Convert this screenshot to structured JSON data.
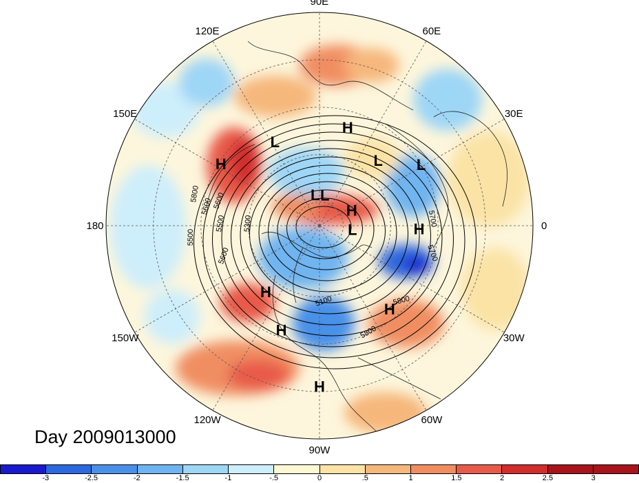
{
  "day_label": "Day 2009013000",
  "longitude_labels": [
    "90E",
    "60E",
    "30E",
    "0",
    "30W",
    "60W",
    "90W",
    "120W",
    "150W",
    "180",
    "150E",
    "120E"
  ],
  "pressure_systems": [
    {
      "type": "L",
      "lon": 118,
      "lat": 50
    },
    {
      "type": "H",
      "lon": 74,
      "lat": 47
    },
    {
      "type": "L",
      "lon": 48,
      "lat": 53
    },
    {
      "type": "L",
      "lon": 31,
      "lat": 40
    },
    {
      "type": "H",
      "lon": 358,
      "lat": 48
    },
    {
      "type": "H",
      "lon": 250,
      "lat": 43
    },
    {
      "type": "L",
      "lon": 98,
      "lat": 77
    },
    {
      "type": "L",
      "lon": 80,
      "lat": 77
    },
    {
      "type": "H",
      "lon": 25,
      "lat": 75
    },
    {
      "type": "L",
      "lon": 353,
      "lat": 76
    },
    {
      "type": "H",
      "lon": 231,
      "lat": 54
    },
    {
      "type": "H",
      "lon": 270,
      "lat": 22
    },
    {
      "type": "H",
      "lon": 148,
      "lat": 41
    },
    {
      "type": "H",
      "lon": 310,
      "lat": 44
    }
  ],
  "contour_labels": [
    "5800",
    "5600",
    "5500",
    "5300",
    "5600",
    "5500",
    "5600",
    "5100",
    "5800",
    "5800",
    "5700",
    "5700"
  ],
  "colorbar": {
    "ticks": [
      "-3",
      "-2.5",
      "-2",
      "-1.5",
      "-1",
      "-.5",
      "0",
      ".5",
      "1",
      "1.5",
      "2",
      "2.5",
      "3"
    ],
    "colors": [
      "#1a1acd",
      "#2e68de",
      "#4a90e8",
      "#6fb4f0",
      "#9ed6f6",
      "#cdeefb",
      "#fdf8d4",
      "#fbe3a6",
      "#f6b77c",
      "#f08e62",
      "#e85a4a",
      "#d22d2d",
      "#a8141c"
    ]
  },
  "colors": {
    "pole_background": "#fdf6dc",
    "map_background": "#ffffff"
  }
}
